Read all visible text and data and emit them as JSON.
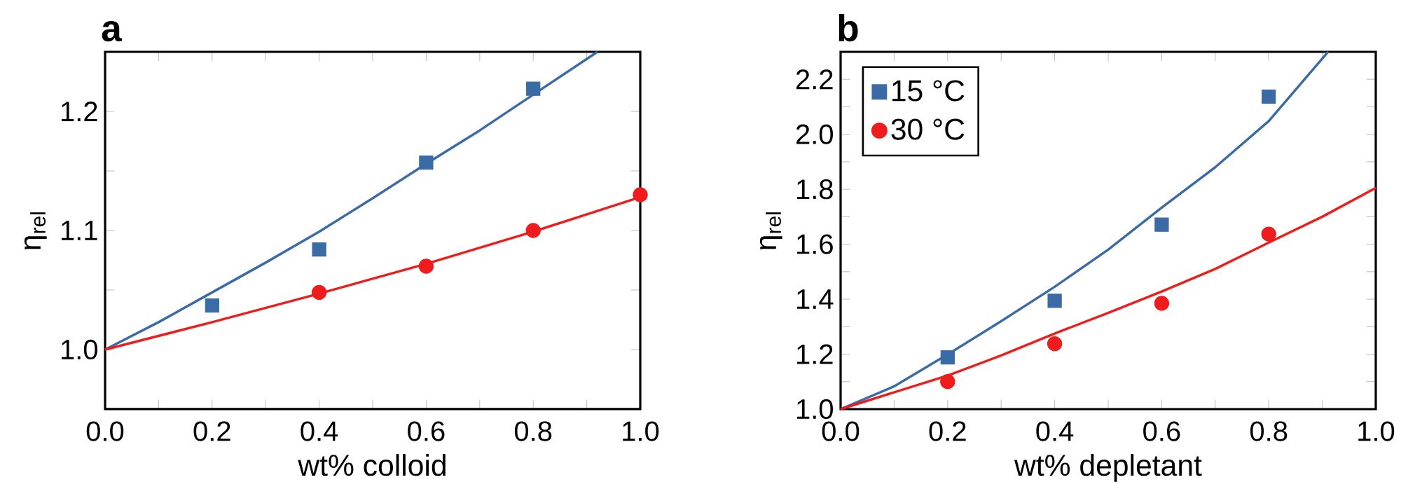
{
  "chart_data": [
    {
      "type": "scatter",
      "title": "a",
      "xlabel": "wt% colloid",
      "ylabel": "η$_{rel}$",
      "xlim": [
        0,
        1
      ],
      "ylim": [
        0.95,
        1.25
      ],
      "xticks": [
        {
          "value": 0,
          "label": "0.0"
        },
        {
          "value": 0.1,
          "label": null
        },
        {
          "value": 0.2,
          "label": "0.2"
        },
        {
          "value": 0.3,
          "label": null
        },
        {
          "value": 0.4,
          "label": "0.4"
        },
        {
          "value": 0.5,
          "label": null
        },
        {
          "value": 0.6,
          "label": "0.6"
        },
        {
          "value": 0.7,
          "label": null
        },
        {
          "value": 0.8,
          "label": "0.8"
        },
        {
          "value": 0.9,
          "label": null
        },
        {
          "value": 1,
          "label": "1.0"
        }
      ],
      "yticks": [
        {
          "value": 0.95,
          "label": null
        },
        {
          "value": 1,
          "label": "1.0"
        },
        {
          "value": 1.05,
          "label": null
        },
        {
          "value": 1.1,
          "label": "1.1"
        },
        {
          "value": 1.15,
          "label": null
        },
        {
          "value": 1.2,
          "label": "1.2"
        },
        {
          "value": 1.25,
          "label": null
        }
      ],
      "series": [
        {
          "type": "scatter",
          "marker": "square",
          "color": "#3b6ba5",
          "x": [
            0.2,
            0.4,
            0.6,
            0.8
          ],
          "values": [
            1.037,
            1.084,
            1.157,
            1.219
          ]
        },
        {
          "type": "scatter",
          "marker": "circle",
          "color": "#ee1c1c",
          "x": [
            0.4,
            0.6,
            0.8,
            1.0
          ],
          "values": [
            1.048,
            1.07,
            1.1,
            1.13
          ]
        },
        {
          "type": "line",
          "color": "#3b6ba5",
          "x": [
            0,
            0.1,
            0.2,
            0.3,
            0.4,
            0.5,
            0.6,
            0.7,
            0.8,
            0.92
          ],
          "values": [
            1.0,
            1.023,
            1.048,
            1.073,
            1.099,
            1.127,
            1.156,
            1.184,
            1.214,
            1.25
          ]
        },
        {
          "type": "line",
          "color": "#ee1c1c",
          "x": [
            0,
            0.2,
            0.4,
            0.6,
            0.8,
            1.0
          ],
          "values": [
            1.0,
            1.023,
            1.047,
            1.072,
            1.099,
            1.128
          ]
        }
      ]
    },
    {
      "type": "scatter",
      "title": "b",
      "xlabel": "wt% depletant",
      "ylabel": "η$_{rel}$",
      "xlim": [
        0,
        1
      ],
      "ylim": [
        1.0,
        2.3
      ],
      "legend": "top left",
      "xticks": [
        {
          "value": 0,
          "label": "0.0"
        },
        {
          "value": 0.1,
          "label": null
        },
        {
          "value": 0.2,
          "label": "0.2"
        },
        {
          "value": 0.3,
          "label": null
        },
        {
          "value": 0.4,
          "label": "0.4"
        },
        {
          "value": 0.5,
          "label": null
        },
        {
          "value": 0.6,
          "label": "0.6"
        },
        {
          "value": 0.7,
          "label": null
        },
        {
          "value": 0.8,
          "label": "0.8"
        },
        {
          "value": 0.9,
          "label": null
        },
        {
          "value": 1,
          "label": "1.0"
        }
      ],
      "yticks": [
        {
          "value": 1,
          "label": "1.0"
        },
        {
          "value": 1.1,
          "label": null
        },
        {
          "value": 1.2,
          "label": "1.2"
        },
        {
          "value": 1.3,
          "label": null
        },
        {
          "value": 1.4,
          "label": "1.4"
        },
        {
          "value": 1.5,
          "label": null
        },
        {
          "value": 1.6,
          "label": "1.6"
        },
        {
          "value": 1.7,
          "label": null
        },
        {
          "value": 1.8,
          "label": "1.8"
        },
        {
          "value": 1.9,
          "label": null
        },
        {
          "value": 2.0,
          "label": "2.0"
        },
        {
          "value": 2.1,
          "label": null
        },
        {
          "value": 2.2,
          "label": "2.2"
        },
        {
          "value": 2.3,
          "label": null
        }
      ],
      "series": [
        {
          "name": "15 °C",
          "type": "scatter",
          "marker": "square",
          "color": "#3b6ba5",
          "x": [
            0.2,
            0.4,
            0.6,
            0.8
          ],
          "values": [
            1.188,
            1.394,
            1.671,
            2.137
          ]
        },
        {
          "name": "30 °C",
          "type": "scatter",
          "marker": "circle",
          "color": "#ee1c1c",
          "x": [
            0.2,
            0.4,
            0.6,
            0.8
          ],
          "values": [
            1.1,
            1.238,
            1.385,
            1.637
          ]
        },
        {
          "type": "line",
          "color": "#3b6ba5",
          "x": [
            0,
            0.1,
            0.2,
            0.3,
            0.4,
            0.5,
            0.6,
            0.7,
            0.8,
            0.911
          ],
          "values": [
            1.0,
            1.083,
            1.199,
            1.32,
            1.445,
            1.58,
            1.733,
            1.88,
            2.048,
            2.3
          ]
        },
        {
          "type": "line",
          "color": "#ee1c1c",
          "x": [
            0,
            0.2,
            0.3,
            0.4,
            0.5,
            0.6,
            0.7,
            0.8,
            0.9,
            1.0
          ],
          "values": [
            1.0,
            1.122,
            1.195,
            1.275,
            1.35,
            1.428,
            1.51,
            1.606,
            1.7,
            1.805
          ]
        }
      ]
    }
  ]
}
